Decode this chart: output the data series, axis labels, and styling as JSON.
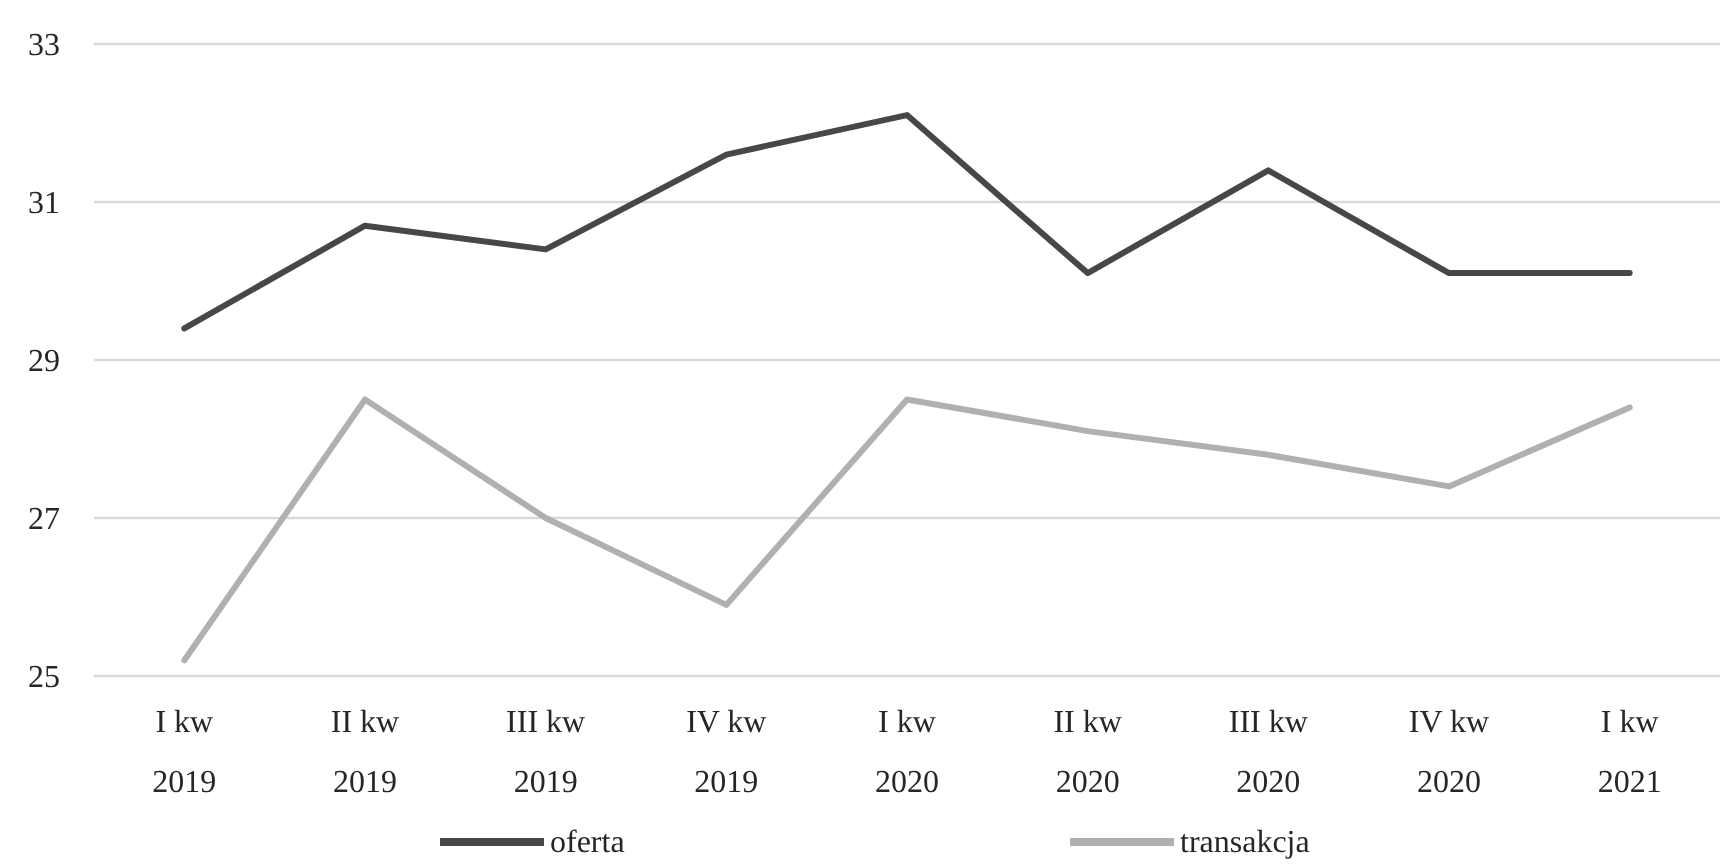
{
  "chart_data": {
    "type": "line",
    "categories": [
      "I kw\n2019",
      "II kw\n2019",
      "III kw\n2019",
      "IV kw\n2019",
      "I kw\n2020",
      "II kw\n2020",
      "III kw\n2020",
      "IV kw\n2020",
      "I kw\n2021"
    ],
    "series": [
      {
        "name": "oferta",
        "color": "#474747",
        "values": [
          29.4,
          30.7,
          30.4,
          31.6,
          32.1,
          30.1,
          31.4,
          30.1,
          30.1
        ]
      },
      {
        "name": "transakcja",
        "color": "#b0b0b0",
        "values": [
          25.2,
          28.5,
          27.0,
          25.9,
          28.5,
          28.1,
          27.8,
          27.4,
          28.4
        ]
      }
    ],
    "ylim": [
      25,
      33
    ],
    "yticks": [
      25,
      27,
      29,
      31,
      33
    ],
    "grid": "y",
    "legend": "bottom",
    "marker": "none",
    "line_style": "solid"
  }
}
